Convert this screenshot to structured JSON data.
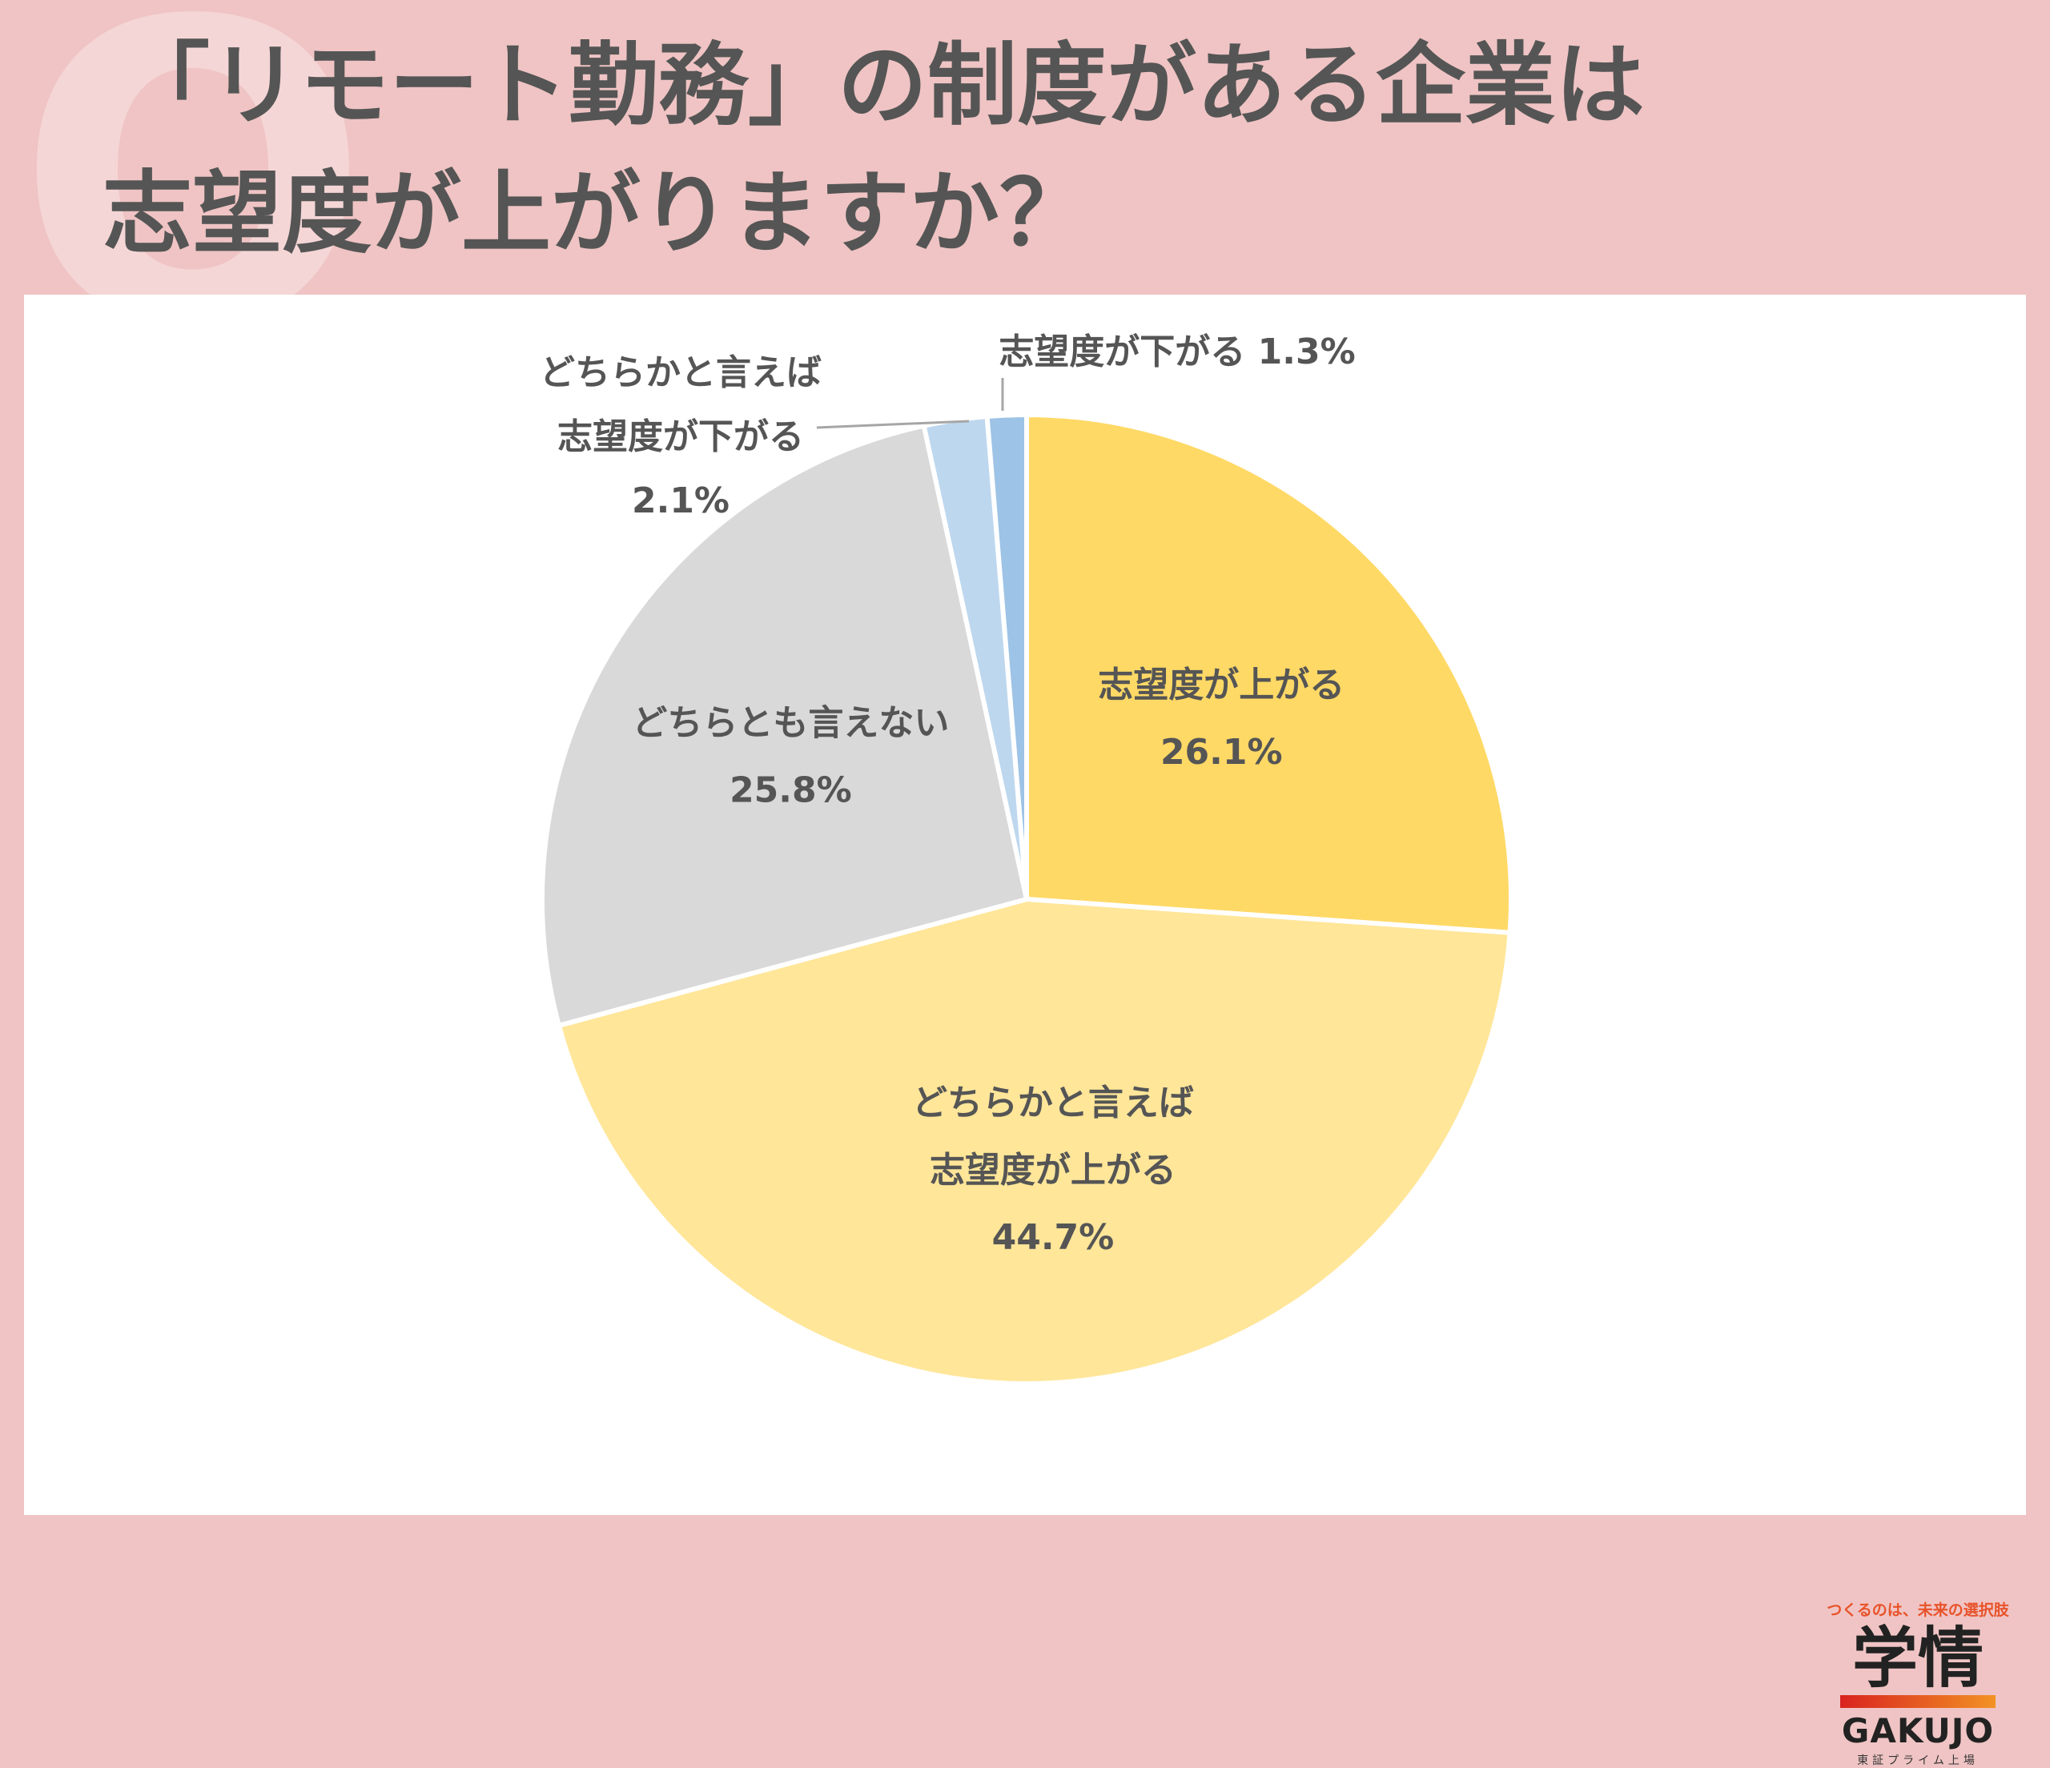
{
  "header": {
    "q_letter": "Q",
    "title_line_1": "「リモート勤務」の制度がある企業は",
    "title_line_2": "志望度が上がりますか？"
  },
  "chart_data": {
    "type": "pie",
    "start": "12 o'clock, clockwise",
    "slices": [
      {
        "label_lines": [
          "志望度が上がる"
        ],
        "value": 26.1,
        "value_text": "26.1%",
        "color": "#ffd966"
      },
      {
        "label_lines": [
          "どちらかと言えば",
          "志望度が上がる"
        ],
        "value": 44.7,
        "value_text": "44.7%",
        "color": "#ffe699"
      },
      {
        "label_lines": [
          "どちらとも言えない"
        ],
        "value": 25.8,
        "value_text": "25.8%",
        "color": "#d9d9d9"
      },
      {
        "label_lines": [
          "どちらかと言えば",
          "志望度が下がる"
        ],
        "value": 2.1,
        "value_text": "2.1%",
        "color": "#bdd7ee"
      },
      {
        "label_lines": [
          "志望度が下がる"
        ],
        "value": 1.3,
        "value_text": "1.3%",
        "color": "#9dc3e6"
      }
    ]
  },
  "logo": {
    "tagline": "つくるのは、未来の選択肢",
    "mark": "学情",
    "name": "GAKUJO",
    "sub": "東証プライム上場"
  }
}
